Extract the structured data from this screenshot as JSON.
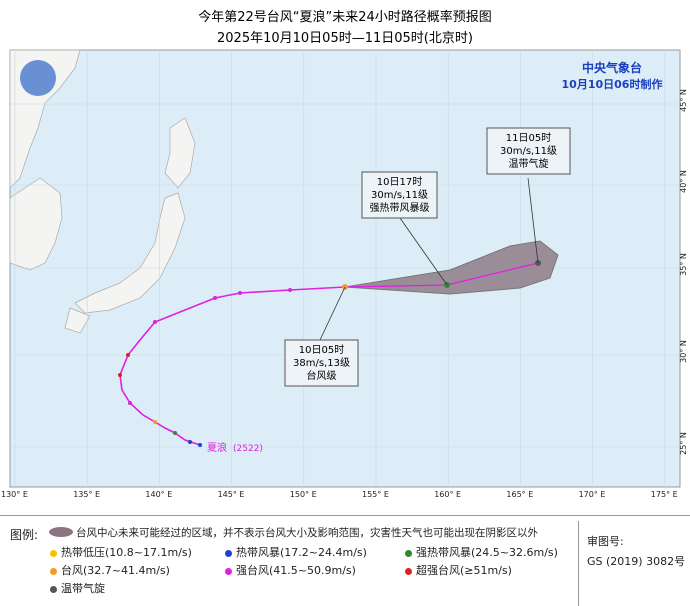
{
  "header": {
    "title": "今年第22号台风“夏浪”未来24小时路径概率预报图",
    "subtitle": "2025年10月10日05时—11日05时(北京时)"
  },
  "agency": {
    "name": "中央气象台",
    "issued": "10月10日06时制作"
  },
  "map": {
    "lon_labels": [
      "130° E",
      "135° E",
      "140° E",
      "145° E",
      "150° E",
      "155° E",
      "160° E",
      "165° E",
      "170° E",
      "175° E"
    ],
    "lat_labels": [
      "25° N",
      "30° N",
      "35° N",
      "40° N",
      "45° N"
    ],
    "storm": {
      "name": "夏浪",
      "code": "(2522)"
    },
    "callouts": [
      {
        "time": "11日05时",
        "wind": "30m/s,11级",
        "level": "温带气旋"
      },
      {
        "time": "10日17时",
        "wind": "30m/s,11级",
        "level": "强热带风暴级"
      },
      {
        "time": "10日05时",
        "wind": "38m/s,13级",
        "level": "台风级"
      }
    ]
  },
  "legend": {
    "title": "图例:",
    "cone": "台风中心未来可能经过的区域，并不表示台风大小及影响范围，灾害性天气也可能出现在阴影区以外",
    "items": [
      {
        "label": "热带低压(10.8~17.1m/s)",
        "color": "#f2c300"
      },
      {
        "label": "热带风暴(17.2~24.4m/s)",
        "color": "#1f3fd6"
      },
      {
        "label": "强热带风暴(24.5~32.6m/s)",
        "color": "#2e8b2e"
      },
      {
        "label": "台风(32.7~41.4m/s)",
        "color": "#f39a2b"
      },
      {
        "label": "强台风(41.5~50.9m/s)",
        "color": "#e020e0"
      },
      {
        "label": "超强台风(≥51m/s)",
        "color": "#e02020"
      },
      {
        "label": "温带气旋",
        "color": "#555555"
      }
    ]
  },
  "review": {
    "label": "审图号:",
    "number": "GS (2019) 3082号"
  }
}
